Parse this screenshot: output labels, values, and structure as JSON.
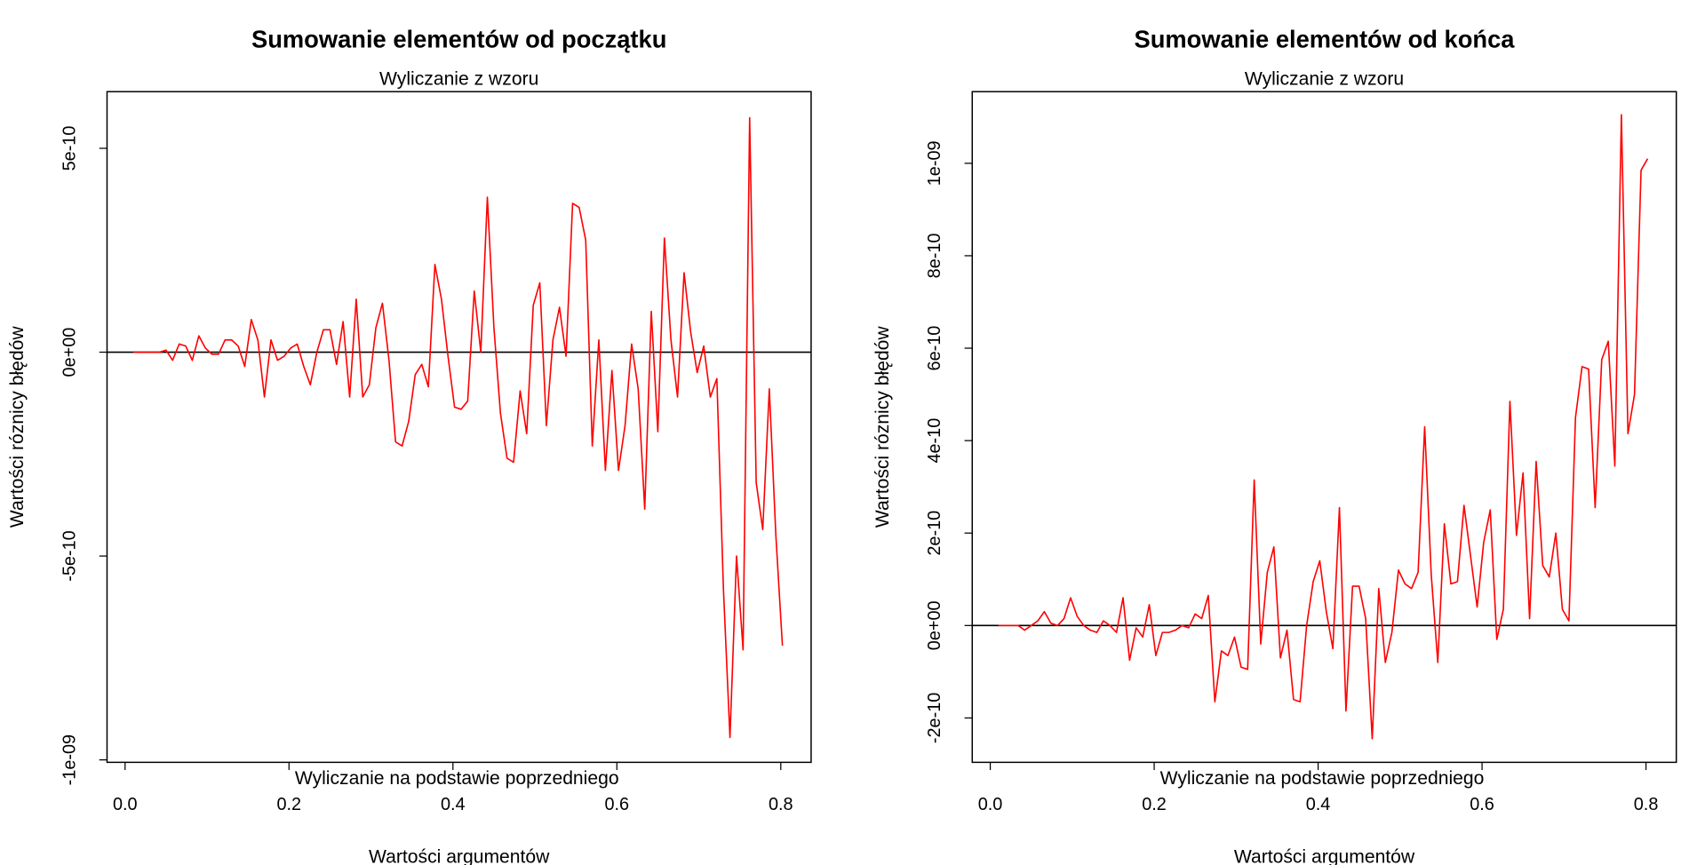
{
  "chart_data": [
    {
      "type": "line",
      "title": "Sumowanie elementów od początku",
      "subtitle": "Wyliczanie z wzoru",
      "annotation": "Wyliczanie na podstawie poprzedniego",
      "xlabel": "Wartości argumentów",
      "ylabel": "Wartości róznicy błędów",
      "x": [
        0.01,
        0.018,
        0.026,
        0.034,
        0.042,
        0.05,
        0.058,
        0.066,
        0.074,
        0.082,
        0.09,
        0.098,
        0.106,
        0.114,
        0.122,
        0.13,
        0.138,
        0.146,
        0.154,
        0.162,
        0.17,
        0.178,
        0.186,
        0.194,
        0.202,
        0.21,
        0.218,
        0.226,
        0.234,
        0.242,
        0.25,
        0.258,
        0.266,
        0.274,
        0.282,
        0.29,
        0.298,
        0.306,
        0.314,
        0.322,
        0.33,
        0.338,
        0.346,
        0.354,
        0.362,
        0.37,
        0.378,
        0.386,
        0.394,
        0.402,
        0.41,
        0.418,
        0.426,
        0.434,
        0.442,
        0.45,
        0.458,
        0.466,
        0.474,
        0.482,
        0.49,
        0.498,
        0.506,
        0.514,
        0.522,
        0.53,
        0.538,
        0.546,
        0.554,
        0.562,
        0.57,
        0.578,
        0.586,
        0.594,
        0.602,
        0.61,
        0.618,
        0.626,
        0.634,
        0.642,
        0.65,
        0.658,
        0.666,
        0.674,
        0.682,
        0.69,
        0.698,
        0.706,
        0.714,
        0.722,
        0.73,
        0.738,
        0.746,
        0.754,
        0.762,
        0.77,
        0.778,
        0.786,
        0.794,
        0.802
      ],
      "values": [
        0,
        0,
        0,
        0,
        0,
        5e-12,
        -2e-11,
        2e-11,
        1.5e-11,
        -2e-11,
        4e-11,
        1e-11,
        -5e-12,
        -5e-12,
        3e-11,
        3e-11,
        1.5e-11,
        -3.5e-11,
        8e-11,
        3e-11,
        -1.1e-10,
        3e-11,
        -2e-11,
        -1e-11,
        1e-11,
        2e-11,
        -3.5e-11,
        -8e-11,
        0,
        5.5e-11,
        5.5e-11,
        -3e-11,
        7.5e-11,
        -1.1e-10,
        1.3e-10,
        -1.1e-10,
        -8e-11,
        6e-11,
        1.2e-10,
        -2e-11,
        -2.2e-10,
        -2.3e-10,
        -1.7e-10,
        -5.5e-11,
        -3e-11,
        -8.5e-11,
        2.15e-10,
        1.3e-10,
        -1e-11,
        -1.35e-10,
        -1.4e-10,
        -1.2e-10,
        1.5e-10,
        0,
        3.8e-10,
        6e-11,
        -1.5e-10,
        -2.6e-10,
        -2.7e-10,
        -9.5e-11,
        -2e-10,
        1.15e-10,
        1.7e-10,
        -1.8e-10,
        3e-11,
        1.1e-10,
        -1e-11,
        3.65e-10,
        3.55e-10,
        2.75e-10,
        -2.3e-10,
        3e-11,
        -2.9e-10,
        -4.5e-11,
        -2.9e-10,
        -1.8e-10,
        2e-11,
        -9e-11,
        -3.85e-10,
        1e-10,
        -1.95e-10,
        2.8e-10,
        3e-11,
        -1.1e-10,
        1.95e-10,
        5e-11,
        -5e-11,
        1.5e-11,
        -1.1e-10,
        -6.5e-11,
        -5.8e-10,
        -9.45e-10,
        -5e-10,
        -7.3e-10,
        5.75e-10,
        -3.2e-10,
        -4.35e-10,
        -9e-11,
        -4.5e-10,
        -7.2e-10
      ],
      "color": "#ff0000",
      "hline": 0,
      "hline_color": "#000000",
      "xlim": [
        -0.022,
        0.837
      ],
      "xticks": [
        {
          "value": 0,
          "label": "0.0"
        },
        0.2,
        0.4,
        0.6,
        0.8
      ],
      "ylim": [
        -1.006e-09,
        6.39e-10
      ],
      "yticks": [
        {
          "value": -1e-09,
          "label": "-1e-09"
        },
        -5e-10,
        {
          "value": 0,
          "label": "0e+00"
        },
        5e-10
      ]
    },
    {
      "type": "line",
      "title": "Sumowanie elementów od końca",
      "subtitle": "Wyliczanie z wzoru",
      "annotation": "Wyliczanie na podstawie poprzedniego",
      "xlabel": "Wartości argumentów",
      "ylabel": "Wartości róznicy błędów",
      "x": [
        0.01,
        0.018,
        0.026,
        0.034,
        0.042,
        0.05,
        0.058,
        0.066,
        0.074,
        0.082,
        0.09,
        0.098,
        0.106,
        0.114,
        0.122,
        0.13,
        0.138,
        0.146,
        0.154,
        0.162,
        0.17,
        0.178,
        0.186,
        0.194,
        0.202,
        0.21,
        0.218,
        0.226,
        0.234,
        0.242,
        0.25,
        0.258,
        0.266,
        0.274,
        0.282,
        0.29,
        0.298,
        0.306,
        0.314,
        0.322,
        0.33,
        0.338,
        0.346,
        0.354,
        0.362,
        0.37,
        0.378,
        0.386,
        0.394,
        0.402,
        0.41,
        0.418,
        0.426,
        0.434,
        0.442,
        0.45,
        0.458,
        0.466,
        0.474,
        0.482,
        0.49,
        0.498,
        0.506,
        0.514,
        0.522,
        0.53,
        0.538,
        0.546,
        0.554,
        0.562,
        0.57,
        0.578,
        0.586,
        0.594,
        0.602,
        0.61,
        0.618,
        0.626,
        0.634,
        0.642,
        0.65,
        0.658,
        0.666,
        0.674,
        0.682,
        0.69,
        0.698,
        0.706,
        0.714,
        0.722,
        0.73,
        0.738,
        0.746,
        0.754,
        0.762,
        0.77,
        0.778,
        0.786,
        0.794,
        0.802
      ],
      "values": [
        0,
        0,
        0,
        0,
        -1e-11,
        0,
        1e-11,
        3e-11,
        5e-12,
        0,
        1.5e-11,
        6e-11,
        2e-11,
        0,
        -1e-11,
        -1.5e-11,
        1e-11,
        0,
        -1.5e-11,
        6e-11,
        -7.5e-11,
        -5e-12,
        -2.5e-11,
        4.5e-11,
        -6.5e-11,
        -1.5e-11,
        -1.5e-11,
        -1e-11,
        0,
        -5e-12,
        2.5e-11,
        1.5e-11,
        6.5e-11,
        -1.65e-10,
        -5.5e-11,
        -6.5e-11,
        -2.5e-11,
        -9e-11,
        -9.5e-11,
        3.15e-10,
        -4e-11,
        1.15e-10,
        1.7e-10,
        -7e-11,
        -1e-11,
        -1.6e-10,
        -1.65e-10,
        0,
        9.5e-11,
        1.4e-10,
        3e-11,
        -5e-11,
        2.55e-10,
        -1.85e-10,
        8.5e-11,
        8.5e-11,
        1.5e-11,
        -2.45e-10,
        8e-11,
        -8e-11,
        -1.5e-11,
        1.2e-10,
        9e-11,
        8e-11,
        1.15e-10,
        4.3e-10,
        1.1e-10,
        -8e-11,
        2.2e-10,
        9e-11,
        9.5e-11,
        2.6e-10,
        1.5e-10,
        4e-11,
        1.8e-10,
        2.5e-10,
        -3e-11,
        3.5e-11,
        4.85e-10,
        1.95e-10,
        3.3e-10,
        1.5e-11,
        3.55e-10,
        1.3e-10,
        1.05e-10,
        2e-10,
        3.5e-11,
        1e-11,
        4.5e-10,
        5.6e-10,
        5.55e-10,
        2.55e-10,
        5.75e-10,
        6.15e-10,
        3.45e-10,
        1.105e-09,
        4.15e-10,
        5e-10,
        9.85e-10,
        1.01e-09
      ],
      "color": "#ff0000",
      "hline": 0,
      "hline_color": "#000000",
      "xlim": [
        -0.022,
        0.837
      ],
      "xticks": [
        {
          "value": 0,
          "label": "0.0"
        },
        0.2,
        0.4,
        0.6,
        0.8
      ],
      "ylim": [
        -2.96e-10,
        1.155e-09
      ],
      "yticks": [
        -2e-10,
        {
          "value": 0,
          "label": "0e+00"
        },
        2e-10,
        4e-10,
        6e-10,
        8e-10,
        {
          "value": 1e-09,
          "label": "1e-09"
        }
      ]
    }
  ]
}
